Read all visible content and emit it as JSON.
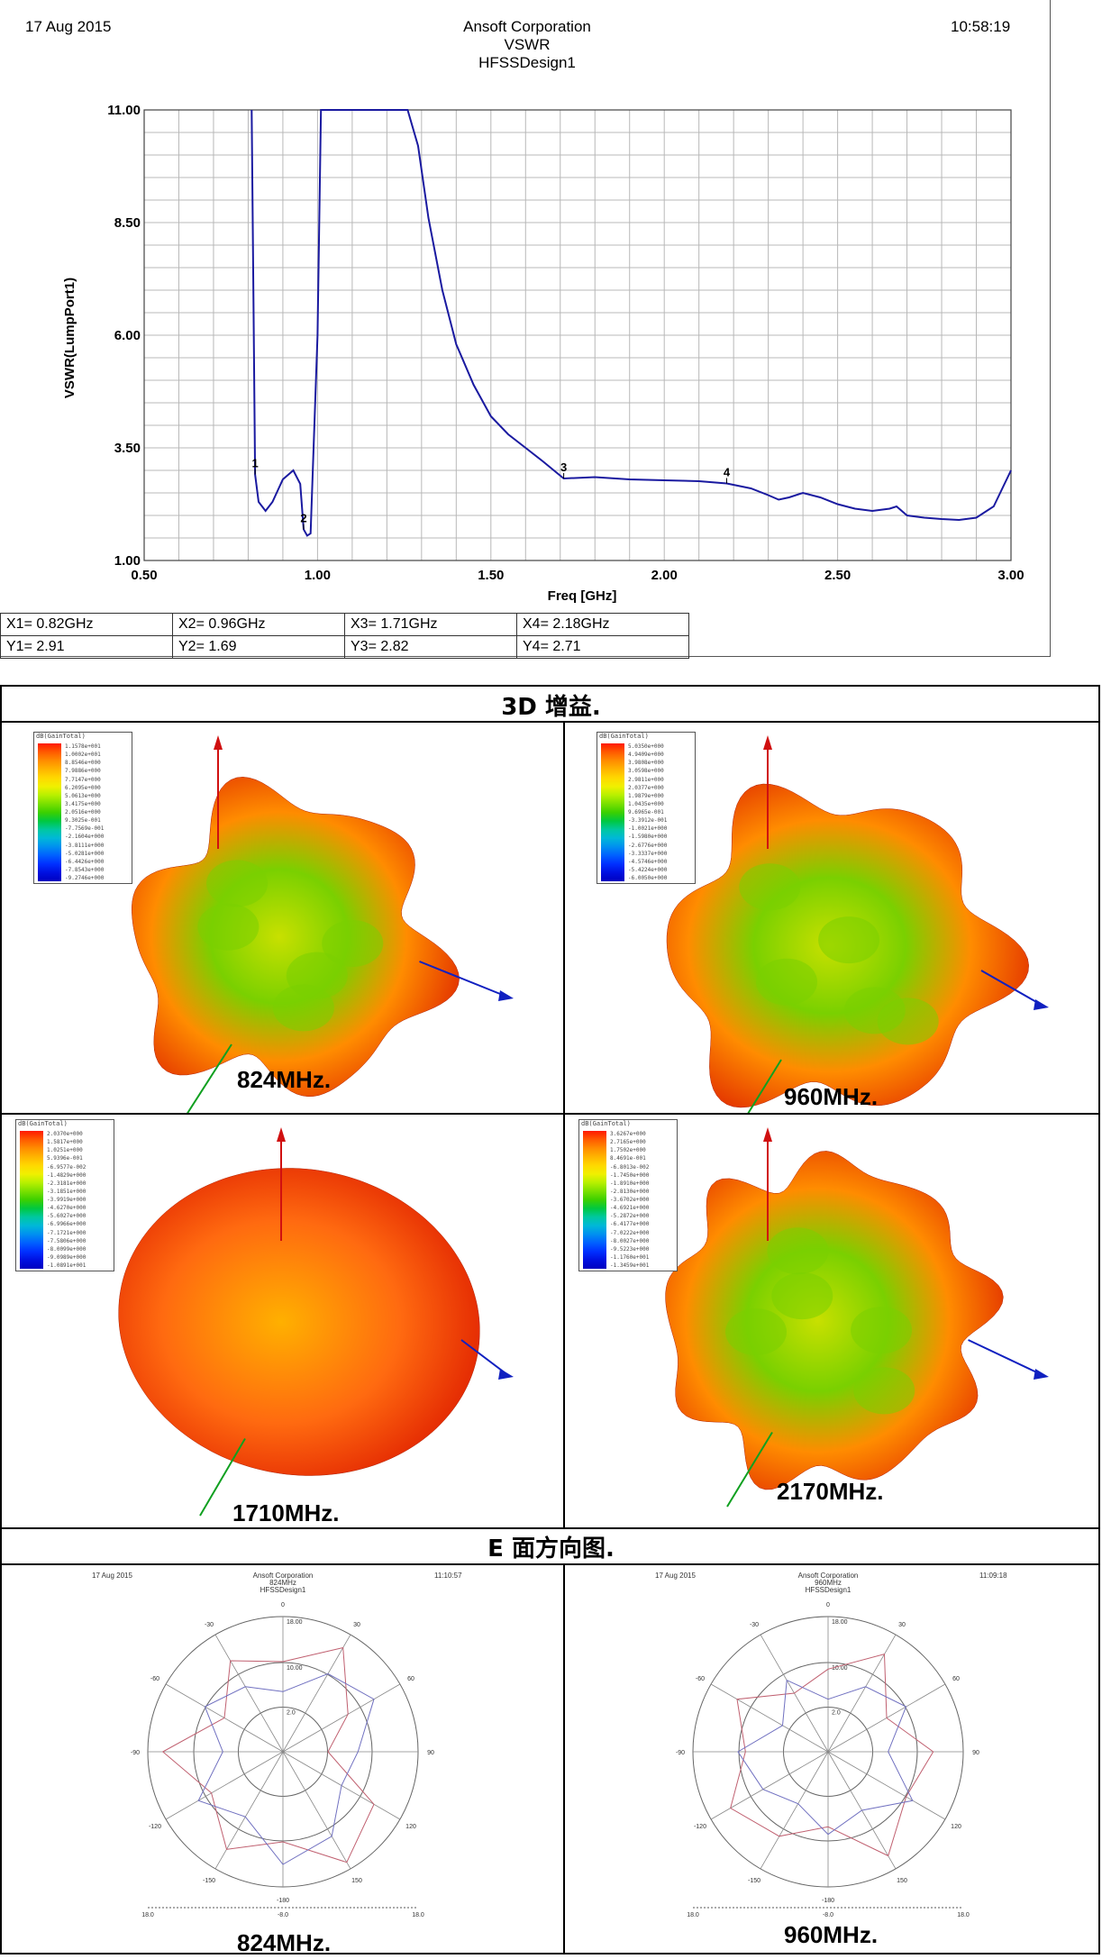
{
  "vswr_header": {
    "date": "17 Aug 2015",
    "company": "Ansoft Corporation",
    "plot_name": "VSWR",
    "design": "HFSSDesign1",
    "time": "10:58:19"
  },
  "chart_data": [
    {
      "type": "line",
      "xlabel": "Freq [GHz]",
      "ylabel": "VSWR(LumpPort1)",
      "xlim": [
        0.5,
        3.0
      ],
      "ylim": [
        1.0,
        11.0
      ],
      "x_ticks": [
        "0.50",
        "1.00",
        "1.50",
        "2.00",
        "2.50",
        "3.00"
      ],
      "y_ticks": [
        "1.00",
        "3.50",
        "6.00",
        "8.50",
        "11.00"
      ],
      "grid": true,
      "series": [
        {
          "color": "#1a1aa0",
          "x": [
            0.81,
            0.815,
            0.82,
            0.83,
            0.85,
            0.87,
            0.9,
            0.93,
            0.95,
            0.96,
            0.97,
            0.98,
            1.0,
            1.01,
            1.03,
            1.2,
            1.26,
            1.29,
            1.32,
            1.36,
            1.4,
            1.45,
            1.5,
            1.55,
            1.6,
            1.65,
            1.71,
            1.8,
            1.9,
            2.0,
            2.1,
            2.18,
            2.25,
            2.3,
            2.33,
            2.36,
            2.4,
            2.45,
            2.5,
            2.55,
            2.6,
            2.65,
            2.67,
            2.7,
            2.75,
            2.8,
            2.85,
            2.9,
            2.95,
            3.0
          ],
          "y": [
            11.0,
            7.0,
            2.91,
            2.3,
            2.1,
            2.3,
            2.8,
            3.0,
            2.7,
            1.69,
            1.55,
            1.6,
            6.0,
            11.0,
            11.0,
            11.0,
            11.0,
            10.2,
            8.6,
            7.0,
            5.8,
            4.9,
            4.2,
            3.8,
            3.5,
            3.2,
            2.82,
            2.85,
            2.8,
            2.78,
            2.76,
            2.71,
            2.6,
            2.45,
            2.35,
            2.4,
            2.5,
            2.4,
            2.25,
            2.15,
            2.1,
            2.15,
            2.2,
            2.0,
            1.95,
            1.92,
            1.9,
            1.95,
            2.2,
            3.0
          ]
        }
      ],
      "markers": [
        {
          "id": "1",
          "x": 0.82,
          "y": 2.91
        },
        {
          "id": "2",
          "x": 0.96,
          "y": 1.69
        },
        {
          "id": "3",
          "x": 1.71,
          "y": 2.82
        },
        {
          "id": "4",
          "x": 2.18,
          "y": 2.71
        }
      ]
    },
    {
      "type": "line",
      "subtype": "polar",
      "header": {
        "date": "17 Aug 2015",
        "company": "Ansoft Corporation",
        "plot_name": "824MHz",
        "design": "HFSSDesign1",
        "time": "11:10:57"
      },
      "ring_labels": [
        "2.0",
        "10.00",
        "18.00"
      ],
      "angle_labels": [
        "0",
        "30",
        "60",
        "90",
        "120",
        "150",
        "-180",
        "-150",
        "-120",
        "-90",
        "-60",
        "-30"
      ],
      "bottom_scale": [
        "18.0",
        "-8.0",
        "18.0"
      ],
      "series": [
        {
          "color": "#c06070",
          "theta": [
            0,
            30,
            60,
            90,
            120,
            150,
            180,
            210,
            240,
            270,
            300,
            330
          ],
          "r": [
            12,
            16,
            10,
            6,
            14,
            17,
            12,
            15,
            11,
            16,
            9,
            14
          ]
        },
        {
          "color": "#7070c0",
          "theta": [
            0,
            30,
            60,
            90,
            120,
            150,
            180,
            210,
            240,
            270,
            300,
            330
          ],
          "r": [
            8,
            12,
            14,
            10,
            9,
            13,
            15,
            10,
            13,
            8,
            12,
            10
          ]
        }
      ]
    },
    {
      "type": "line",
      "subtype": "polar",
      "header": {
        "date": "17 Aug 2015",
        "company": "Ansoft Corporation",
        "plot_name": "960MHz",
        "design": "HFSSDesign1",
        "time": "11:09:18"
      },
      "ring_labels": [
        "2.0",
        "10.00",
        "18.00"
      ],
      "angle_labels": [
        "0",
        "30",
        "60",
        "90",
        "120",
        "150",
        "-180",
        "-150",
        "-120",
        "-90",
        "-60",
        "-30"
      ],
      "bottom_scale": [
        "18.0",
        "-8.0",
        "18.0"
      ],
      "series": [
        {
          "color": "#c06070",
          "theta": [
            0,
            30,
            60,
            90,
            120,
            150,
            180,
            210,
            240,
            270,
            300,
            330
          ],
          "r": [
            11,
            15,
            9,
            14,
            12,
            16,
            10,
            13,
            15,
            11,
            14,
            9
          ]
        },
        {
          "color": "#7070c0",
          "theta": [
            0,
            30,
            60,
            90,
            120,
            150,
            180,
            210,
            240,
            270,
            300,
            330
          ],
          "r": [
            7,
            10,
            12,
            8,
            13,
            9,
            11,
            8,
            10,
            12,
            7,
            11
          ]
        }
      ]
    }
  ],
  "marker_table": [
    [
      "X1= 0.82GHz",
      "X2= 0.96GHz",
      "X3= 1.71GHz",
      "X4= 2.18GHz"
    ],
    [
      "Y1= 2.91",
      "Y2= 1.69",
      "Y3= 2.82",
      "Y4= 2.71"
    ]
  ],
  "section_3d": {
    "title": "3D 增益.",
    "panels": [
      {
        "label": "824MHz.",
        "legend_title": "dB(GainTotal)",
        "legend_values": [
          "1.1578e+001",
          "1.0002e+001",
          "8.8546e+000",
          "7.9886e+000",
          "7.7147e+000",
          "6.2095e+000",
          "5.0613e+000",
          "3.4175e+000",
          "2.0516e+000",
          "9.3025e-001",
          "-7.7569e-001",
          "-2.1604e+000",
          "-3.8111e+000",
          "-5.0281e+000",
          "-6.4426e+000",
          "-7.8543e+000",
          "-9.2746e+000"
        ]
      },
      {
        "label": "960MHz.",
        "legend_title": "dB(GainTotal)",
        "legend_values": [
          "5.0350e+000",
          "4.9409e+000",
          "3.9808e+000",
          "3.0598e+000",
          "2.9811e+000",
          "2.0377e+000",
          "1.9879e+000",
          "1.0435e+000",
          "9.6965e-001",
          "-3.3912e-001",
          "-1.0021e+000",
          "-1.5980e+000",
          "-2.6776e+000",
          "-3.3337e+000",
          "-4.5746e+000",
          "-5.4224e+000",
          "-6.0050e+000"
        ]
      },
      {
        "label": "1710MHz.",
        "legend_title": "dB(GainTotal)",
        "legend_values": [
          "2.0370e+000",
          "1.5817e+000",
          "1.0251e+000",
          "5.9396e-001",
          "-6.9577e-002",
          "-1.4829e+000",
          "-2.3181e+000",
          "-3.1851e+000",
          "-3.9919e+000",
          "-4.6270e+000",
          "-5.6027e+000",
          "-6.9966e+000",
          "-7.1721e+000",
          "-7.5806e+000",
          "-8.0099e+000",
          "-9.0989e+000",
          "-1.0891e+001"
        ]
      },
      {
        "label": "2170MHz.",
        "legend_title": "dB(GainTotal)",
        "legend_values": [
          "3.6267e+000",
          "2.7165e+000",
          "1.7502e+000",
          "8.4691e-001",
          "-6.8013e-002",
          "-1.7450e+000",
          "-1.8910e+000",
          "-2.8130e+000",
          "-3.6702e+000",
          "-4.6921e+000",
          "-5.2872e+000",
          "-6.4177e+000",
          "-7.0222e+000",
          "-8.0027e+000",
          "-9.5223e+000",
          "-1.1760e+001",
          "-1.3459e+001"
        ]
      }
    ]
  },
  "section_e": {
    "title": "E 面方向图.",
    "panels": [
      {
        "label": "824MHz."
      },
      {
        "label": "960MHz."
      }
    ]
  }
}
